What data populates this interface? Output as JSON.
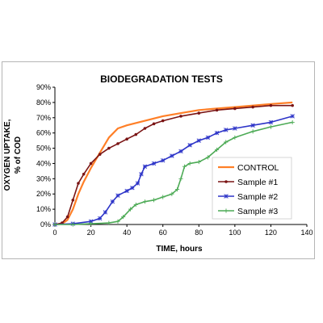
{
  "chart_data": {
    "type": "line",
    "title": "BIODEGRADATION TESTS",
    "xlabel": "TIME, hours",
    "ylabel_line1": "OXYGEN UPTAKE,",
    "ylabel_line2": "% of COD",
    "xlim": [
      0,
      140
    ],
    "ylim": [
      0,
      90
    ],
    "x_ticks": [
      "0",
      "20",
      "40",
      "60",
      "80",
      "100",
      "120",
      "140"
    ],
    "y_ticks": [
      "0%",
      "10%",
      "20%",
      "30%",
      "40%",
      "50%",
      "60%",
      "70%",
      "80%",
      "90%"
    ],
    "grid": false,
    "legend_position": "right",
    "series": [
      {
        "name": "CONTROL",
        "color": "#ff7f27",
        "marker": "none",
        "x": [
          0,
          4,
          7,
          10,
          13,
          16,
          20,
          25,
          30,
          35,
          40,
          50,
          60,
          70,
          80,
          90,
          100,
          110,
          120,
          132
        ],
        "y": [
          0,
          0.5,
          3,
          10,
          20,
          28,
          37,
          47,
          57,
          63,
          65,
          68,
          71,
          73,
          75,
          76,
          77,
          78,
          79,
          80
        ]
      },
      {
        "name": "Sample #1",
        "color": "#7a1414",
        "marker": "dot",
        "x": [
          0,
          4,
          7,
          10,
          13,
          16,
          20,
          25,
          30,
          35,
          40,
          45,
          50,
          55,
          60,
          70,
          80,
          90,
          100,
          110,
          120,
          132
        ],
        "y": [
          0,
          1,
          5,
          16,
          27,
          33,
          40,
          46,
          50,
          53,
          56,
          59,
          63,
          66,
          68,
          71,
          73,
          75,
          76,
          77,
          78,
          78
        ]
      },
      {
        "name": "Sample #2",
        "color": "#2d34c8",
        "marker": "star",
        "x": [
          0,
          10,
          20,
          25,
          28,
          32,
          35,
          40,
          43,
          46,
          48,
          50,
          55,
          60,
          65,
          70,
          75,
          80,
          85,
          90,
          95,
          100,
          110,
          120,
          132
        ],
        "y": [
          0,
          0.5,
          2,
          4,
          8,
          15,
          19,
          22,
          24,
          27,
          33,
          38,
          40,
          42,
          45,
          48,
          52,
          55,
          57,
          60,
          62,
          63,
          65,
          67,
          71
        ]
      },
      {
        "name": "Sample #3",
        "color": "#4caa55",
        "marker": "plus",
        "x": [
          0,
          10,
          20,
          30,
          35,
          38,
          42,
          45,
          50,
          55,
          60,
          65,
          68,
          70,
          72,
          75,
          80,
          85,
          90,
          95,
          100,
          110,
          120,
          132
        ],
        "y": [
          0,
          0,
          0.5,
          1,
          2,
          5,
          10,
          13,
          15,
          16,
          18,
          20,
          23,
          30,
          38,
          40,
          41,
          44,
          49,
          54,
          57,
          61,
          64,
          67
        ]
      }
    ]
  }
}
